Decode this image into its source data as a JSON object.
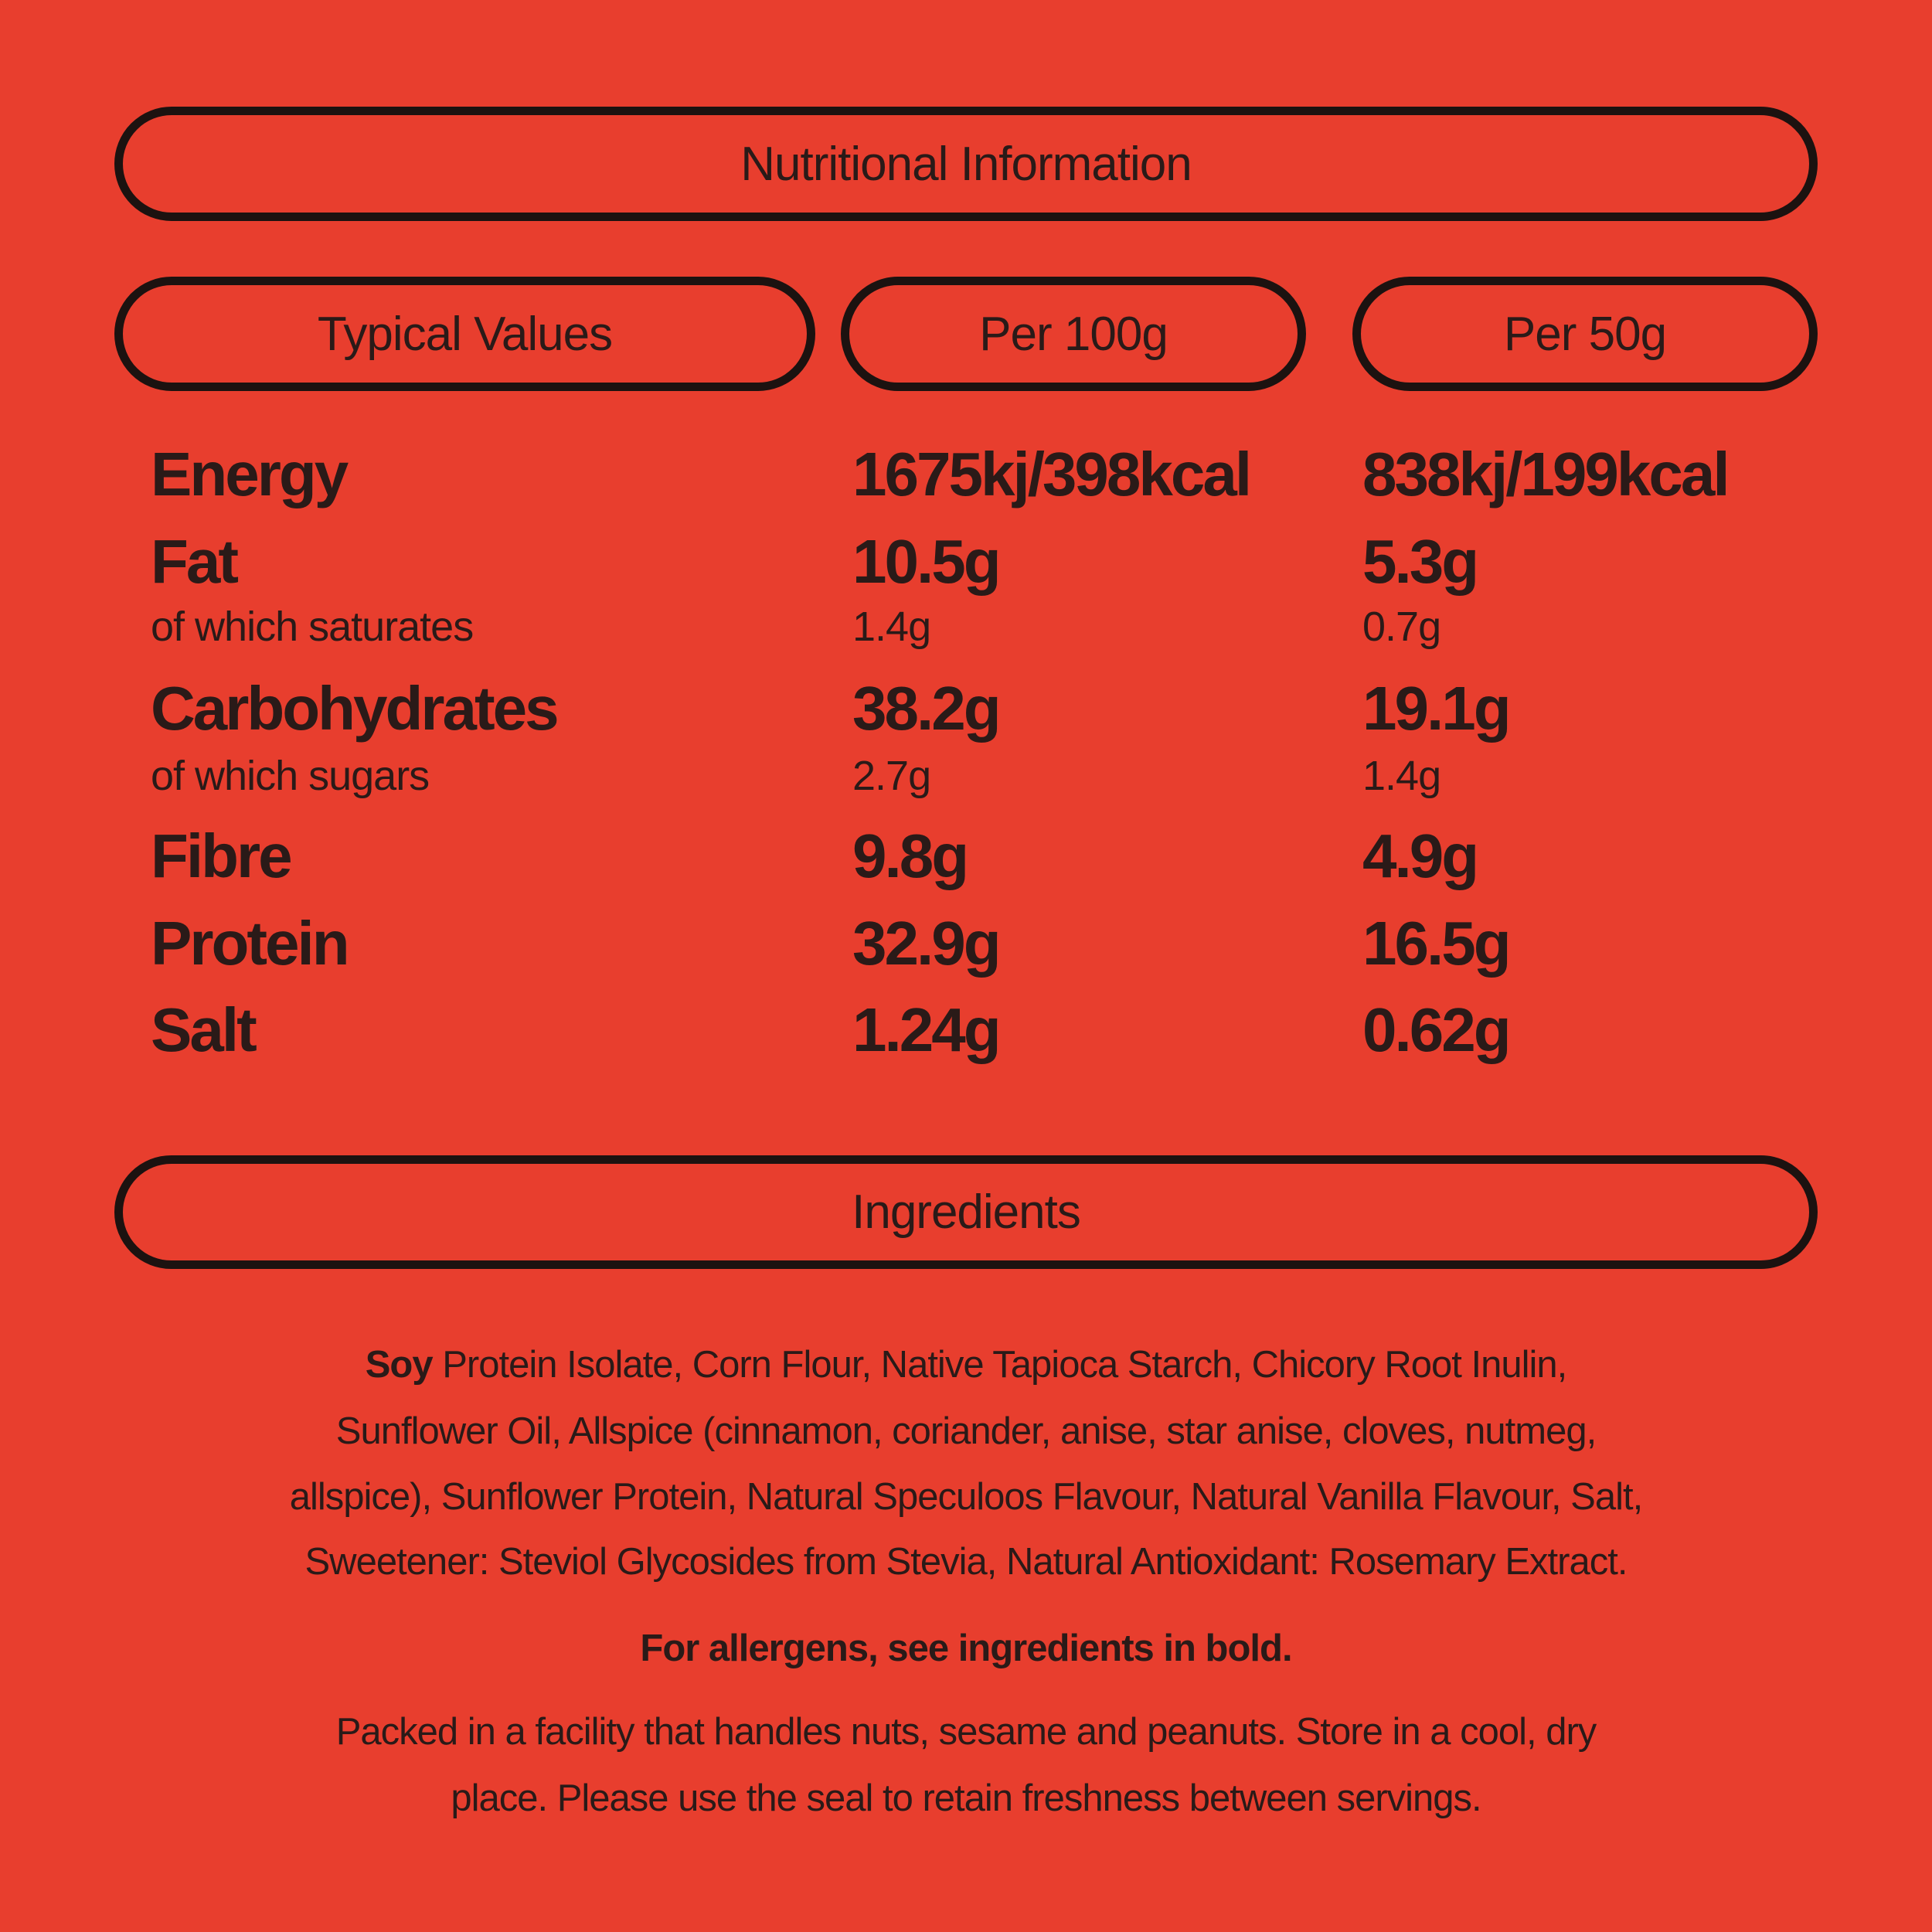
{
  "colors": {
    "background": "#e83e2e",
    "text": "#2a1a18",
    "border": "#1c1210"
  },
  "title": "Nutritional Information",
  "headers": [
    "Typical Values",
    "Per 100g",
    "Per 50g"
  ],
  "rows": [
    {
      "label": "Energy",
      "per100": "1675kj/398kcal",
      "per50": "838kj/199kcal",
      "size": "big"
    },
    {
      "label": "Fat",
      "per100": "10.5g",
      "per50": "5.3g",
      "size": "big"
    },
    {
      "label": "of which saturates",
      "per100": "1.4g",
      "per50": "0.7g",
      "size": "small"
    },
    {
      "label": "Carbohydrates",
      "per100": "38.2g",
      "per50": "19.1g",
      "size": "big"
    },
    {
      "label": "of which sugars",
      "per100": "2.7g",
      "per50": "1.4g",
      "size": "small"
    },
    {
      "label": "Fibre",
      "per100": "9.8g",
      "per50": "4.9g",
      "size": "big"
    },
    {
      "label": "Protein",
      "per100": "32.9g",
      "per50": "16.5g",
      "size": "big"
    },
    {
      "label": "Salt",
      "per100": "1.24g",
      "per50": "0.62g",
      "size": "big"
    }
  ],
  "ingredients": {
    "title": "Ingredients",
    "bold_first": "Soy",
    "lines": [
      " Protein Isolate, Corn Flour, Native Tapioca Starch, Chicory Root Inulin,",
      "Sunflower Oil, Allspice (cinnamon, coriander, anise, star anise, cloves, nutmeg,",
      "allspice), Sunflower Protein, Natural Speculoos Flavour, Natural Vanilla Flavour, Salt,",
      "Sweetener: Steviol Glycosides from Stevia, Natural Antioxidant: Rosemary Extract."
    ],
    "allergens": "For allergens, see ingredients in bold.",
    "storage": [
      "Packed in a facility that handles nuts, sesame and peanuts. Store in a cool, dry",
      "place. Please use the seal to retain freshness between servings."
    ]
  }
}
